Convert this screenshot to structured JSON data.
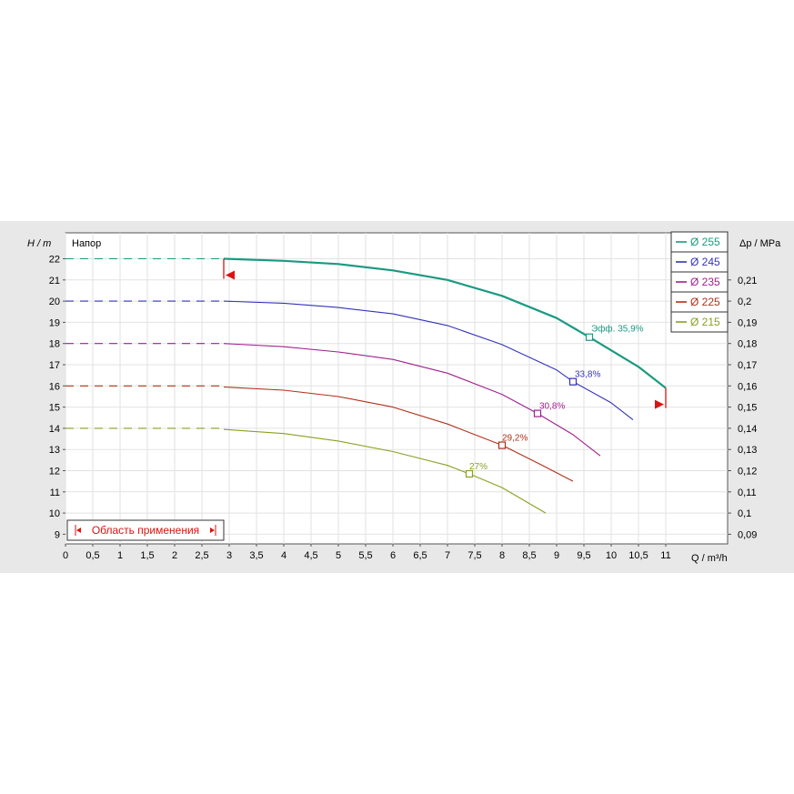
{
  "chart_data": {
    "type": "line",
    "title": "Напор",
    "ylabel": "H / m",
    "y2label": "Δp / MPa",
    "xlabel": "Q / m³/h",
    "xlim": [
      0,
      12
    ],
    "ylim": [
      8.7,
      22.8
    ],
    "y2lim": [
      0.087,
      0.228
    ],
    "x_ticks": [
      "0",
      "0,5",
      "1",
      "1,5",
      "2",
      "2,5",
      "3",
      "3,5",
      "4",
      "4,5",
      "5",
      "5,5",
      "6",
      "6,5",
      "7",
      "7,5",
      "8",
      "8,5",
      "9",
      "9,5",
      "10",
      "10,5",
      "11"
    ],
    "y_ticks": [
      "9",
      "10",
      "11",
      "12",
      "13",
      "14",
      "15",
      "16",
      "17",
      "18",
      "19",
      "20",
      "21",
      "22"
    ],
    "y2_ticks": [
      "0,09",
      "0,1",
      "0,11",
      "0,12",
      "0,13",
      "0,14",
      "0,15",
      "0,16",
      "0,17",
      "0,18",
      "0,19",
      "0,2",
      "0,21"
    ],
    "grid": true,
    "legend_position": "top-right",
    "series": [
      {
        "name": "Ø 255",
        "color": "#1a9a80",
        "bold": true,
        "dashed": [
          [
            0,
            22.0
          ],
          [
            2.9,
            22.0
          ]
        ],
        "solid": [
          [
            2.9,
            22.0
          ],
          [
            4,
            21.9
          ],
          [
            5,
            21.75
          ],
          [
            6,
            21.45
          ],
          [
            7,
            21.0
          ],
          [
            8,
            20.25
          ],
          [
            9,
            19.2
          ],
          [
            9.6,
            18.3
          ],
          [
            10.5,
            16.9
          ],
          [
            11,
            15.9
          ]
        ],
        "efficiency_point": [
          9.6,
          18.3
        ],
        "efficiency_label": "Эфф.  35,9%"
      },
      {
        "name": "Ø 245",
        "color": "#3333bb",
        "bold": false,
        "dashed": [
          [
            0,
            20.0
          ],
          [
            2.9,
            20.0
          ]
        ],
        "solid": [
          [
            2.9,
            20.0
          ],
          [
            4,
            19.9
          ],
          [
            5,
            19.7
          ],
          [
            6,
            19.4
          ],
          [
            7,
            18.85
          ],
          [
            8,
            17.95
          ],
          [
            9,
            16.75
          ],
          [
            9.3,
            16.2
          ],
          [
            10,
            15.2
          ],
          [
            10.4,
            14.4
          ]
        ],
        "efficiency_point": [
          9.3,
          16.2
        ],
        "efficiency_label": "33,8%"
      },
      {
        "name": "Ø 235",
        "color": "#a02090",
        "bold": false,
        "dashed": [
          [
            0,
            18.0
          ],
          [
            2.9,
            18.0
          ]
        ],
        "solid": [
          [
            2.9,
            18.0
          ],
          [
            4,
            17.85
          ],
          [
            5,
            17.6
          ],
          [
            6,
            17.25
          ],
          [
            7,
            16.6
          ],
          [
            8,
            15.6
          ],
          [
            8.65,
            14.7
          ],
          [
            9.3,
            13.7
          ],
          [
            9.8,
            12.7
          ]
        ],
        "efficiency_point": [
          8.65,
          14.7
        ],
        "efficiency_label": "30,8%"
      },
      {
        "name": "Ø 225",
        "color": "#b03018",
        "bold": false,
        "dashed": [
          [
            0,
            16.0
          ],
          [
            2.9,
            16.0
          ]
        ],
        "solid": [
          [
            2.9,
            15.95
          ],
          [
            4,
            15.8
          ],
          [
            5,
            15.5
          ],
          [
            6,
            15.0
          ],
          [
            7,
            14.2
          ],
          [
            8,
            13.2
          ],
          [
            8.7,
            12.3
          ],
          [
            9.3,
            11.5
          ]
        ],
        "efficiency_point": [
          8.0,
          13.2
        ],
        "efficiency_label": "29,2%"
      },
      {
        "name": "Ø 215",
        "color": "#8aa020",
        "bold": false,
        "dashed": [
          [
            0,
            14.0
          ],
          [
            2.9,
            14.0
          ]
        ],
        "solid": [
          [
            2.9,
            13.95
          ],
          [
            4,
            13.75
          ],
          [
            5,
            13.4
          ],
          [
            6,
            12.9
          ],
          [
            7,
            12.25
          ],
          [
            7.4,
            11.85
          ],
          [
            8,
            11.2
          ],
          [
            8.8,
            10.0
          ]
        ],
        "efficiency_point": [
          7.4,
          11.85
        ],
        "efficiency_label": "27%"
      }
    ],
    "application_range": {
      "label": "Область применения",
      "q_min": 2.9,
      "q_max": 11.0,
      "color": "#dd1111"
    }
  }
}
